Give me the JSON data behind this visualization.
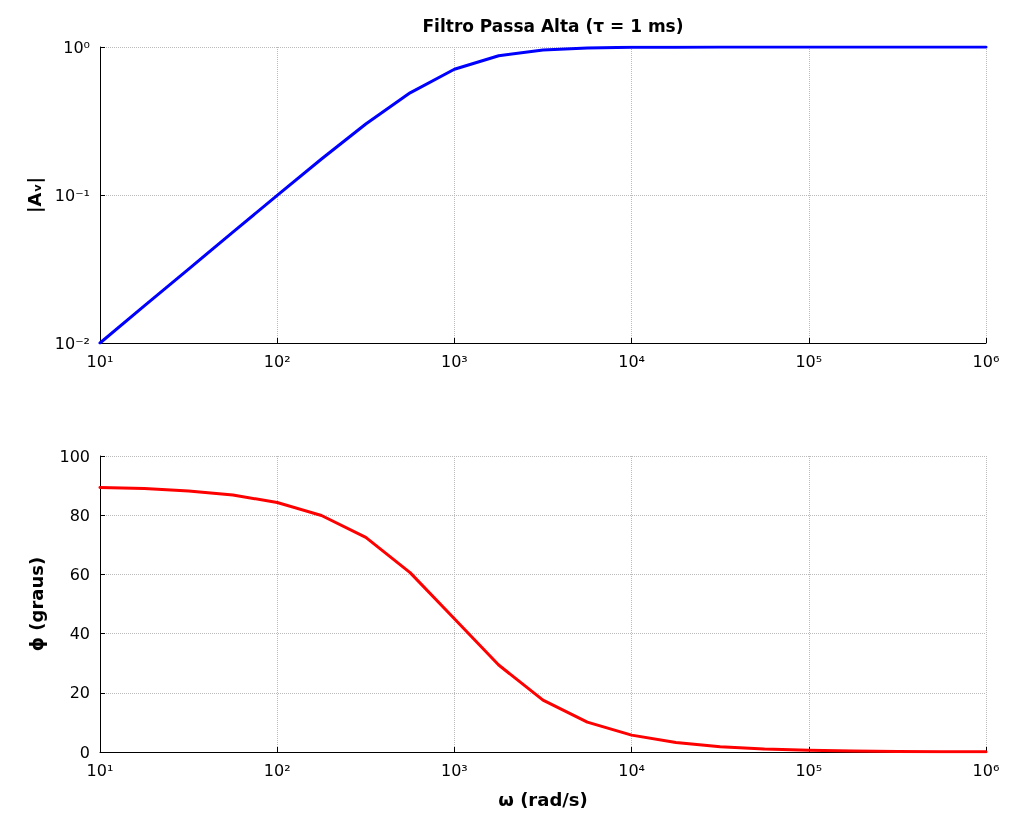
{
  "chart_data": [
    {
      "type": "line",
      "title": "Filtro Passa Alta (τ = 1 ms)",
      "ylabel": "|Aᵥ|",
      "log": "xy",
      "grid": true,
      "marker": "none",
      "line_style": "solid",
      "x": [
        10,
        17.78,
        31.62,
        56.23,
        100,
        177.8,
        316.2,
        562.3,
        1000,
        1778,
        3162,
        5623,
        10000,
        17783,
        31623,
        56234,
        100000,
        177828,
        316228,
        562341,
        1000000
      ],
      "series": [
        {
          "color": "#0000ff",
          "values": [
            0.01,
            0.0178,
            0.0316,
            0.0561,
            0.0995,
            0.175,
            0.302,
            0.49,
            0.707,
            0.872,
            0.953,
            0.985,
            0.995,
            0.998,
            1,
            1,
            1,
            1,
            1,
            1,
            1
          ]
        }
      ],
      "xlim": [
        10,
        1000000
      ],
      "ylim": [
        0.01,
        1
      ],
      "xticks": [
        {
          "value": 10,
          "label": "10¹"
        },
        {
          "value": 100,
          "label": "10²"
        },
        {
          "value": 1000,
          "label": "10³"
        },
        {
          "value": 10000,
          "label": "10⁴"
        },
        {
          "value": 100000,
          "label": "10⁵"
        },
        {
          "value": 1000000,
          "label": "10⁶"
        }
      ],
      "yticks": [
        {
          "value": 0.01,
          "label": "10⁻²"
        },
        {
          "value": 0.1,
          "label": "10⁻¹"
        },
        {
          "value": 1,
          "label": "10⁰"
        }
      ]
    },
    {
      "type": "line",
      "xlabel": "ω (rad/s)",
      "ylabel": "ϕ (graus)",
      "log": "x",
      "grid": true,
      "marker": "none",
      "line_style": "solid",
      "x": [
        10,
        17.78,
        31.62,
        56.23,
        100,
        177.8,
        316.2,
        562.3,
        1000,
        1778,
        3162,
        5623,
        10000,
        17783,
        31623,
        56234,
        100000,
        177828,
        316228,
        562341,
        1000000
      ],
      "series": [
        {
          "color": "#ff0000",
          "values": [
            89.4,
            89.0,
            88.2,
            86.8,
            84.3,
            79.9,
            72.5,
            60.6,
            45,
            29.4,
            17.5,
            10.1,
            5.7,
            3.2,
            1.8,
            1.0,
            0.6,
            0.3,
            0.2,
            0.1,
            0.1
          ]
        }
      ],
      "xlim": [
        10,
        1000000
      ],
      "ylim": [
        0,
        100
      ],
      "xticks": [
        {
          "value": 10,
          "label": "10¹"
        },
        {
          "value": 100,
          "label": "10²"
        },
        {
          "value": 1000,
          "label": "10³"
        },
        {
          "value": 10000,
          "label": "10⁴"
        },
        {
          "value": 100000,
          "label": "10⁵"
        },
        {
          "value": 1000000,
          "label": "10⁶"
        }
      ],
      "yticks": [
        0,
        20,
        40,
        60,
        80,
        100
      ]
    }
  ]
}
